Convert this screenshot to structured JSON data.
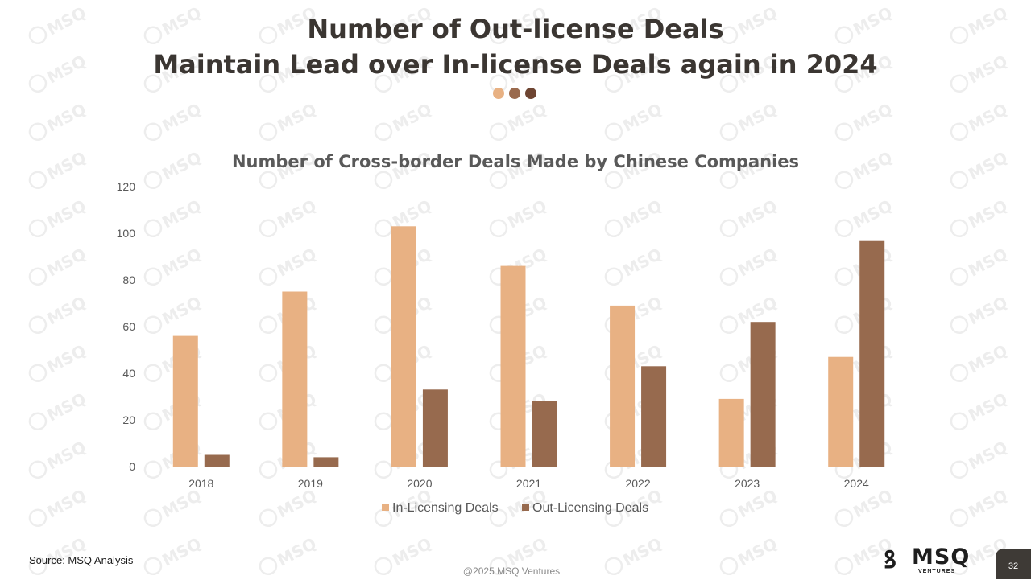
{
  "slide": {
    "title_line1": "Number of Out-license Deals",
    "title_line2": "Maintain Lead over In-license Deals again in 2024",
    "dot_colors": [
      "#E8B183",
      "#9A6A4D",
      "#6E4532"
    ],
    "source": "Source: MSQ Analysis",
    "copyright": "@2025 MSQ Ventures",
    "page_number": "32",
    "logo": {
      "name": "MSQ",
      "subtitle": "VENTURES",
      "icon": "msq-logo-icon"
    },
    "watermark_text": "MSQ"
  },
  "chart_data": {
    "type": "bar",
    "title": "Number of Cross-border Deals Made by Chinese Companies",
    "xlabel": "",
    "ylabel": "",
    "categories": [
      "2018",
      "2019",
      "2020",
      "2021",
      "2022",
      "2023",
      "2024"
    ],
    "series": [
      {
        "name": "In-Licensing Deals",
        "values": [
          56,
          75,
          103,
          86,
          69,
          29,
          47
        ],
        "color": "#E8B183"
      },
      {
        "name": "Out-Licensing Deals",
        "values": [
          5,
          4,
          33,
          28,
          43,
          62,
          97
        ],
        "color": "#976A4E"
      }
    ],
    "ylim": [
      0,
      120
    ],
    "yticks": [
      "0",
      "20",
      "40",
      "60",
      "80",
      "100",
      "120"
    ],
    "grid": false,
    "legend": "bottom"
  }
}
